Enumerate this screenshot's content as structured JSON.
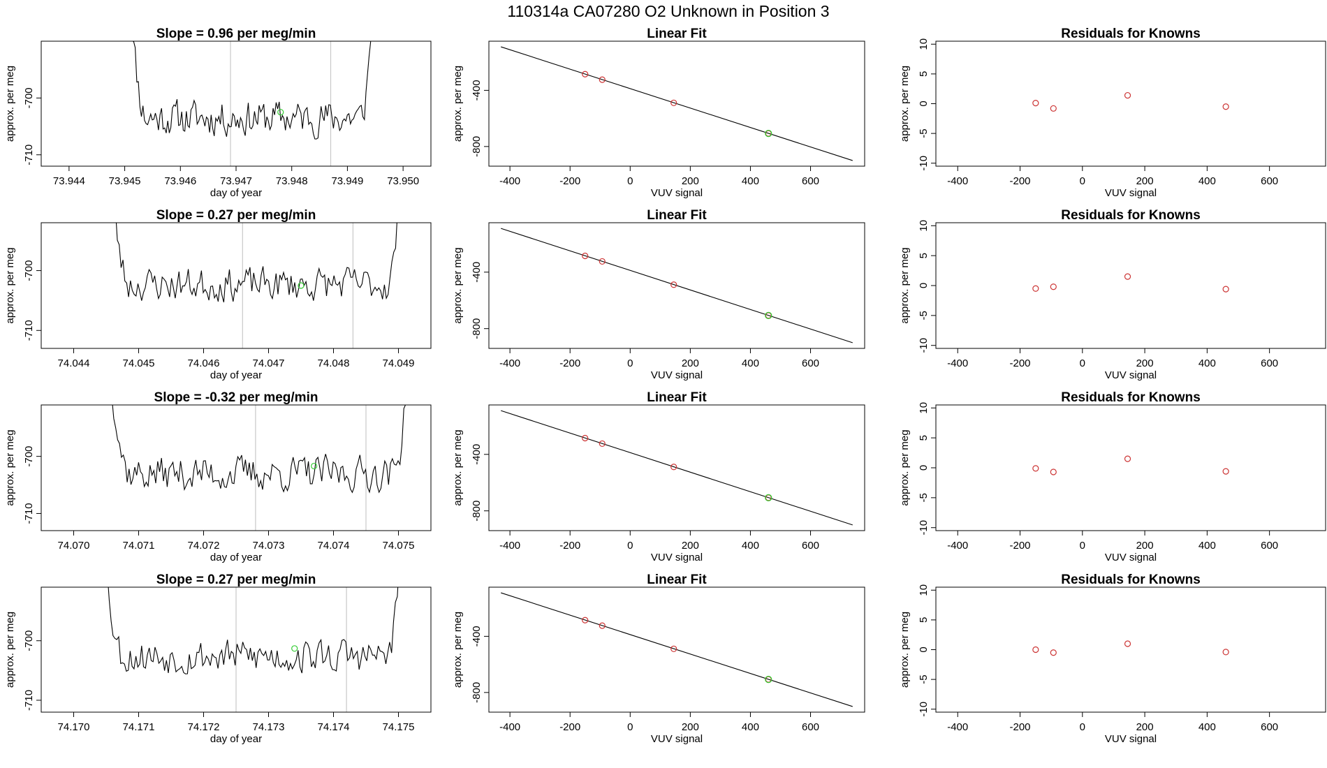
{
  "page_title": "110314a      CA07280    O2 Unknown in Position  3",
  "colors": {
    "known": "#cc3333",
    "unknown": "#33cc33",
    "line": "#000000",
    "vline": "#c8c8c8"
  },
  "chart_data": [
    {
      "type": "line",
      "panel": "time",
      "row": 0,
      "title": "Slope =  0.96  per meg/min",
      "xlabel": "day of year",
      "ylabel": "approx. per meg",
      "xlim": [
        73.9435,
        73.9505
      ],
      "ylim": [
        -712,
        -690
      ],
      "xticks": [
        73.944,
        73.945,
        73.946,
        73.947,
        73.948,
        73.949,
        73.95
      ],
      "xtick_labels": [
        "73.944",
        "73.945",
        "73.946",
        "73.947",
        "73.948",
        "73.949",
        "73.950"
      ],
      "yticks": [
        -700,
        -710
      ],
      "ytick_labels": [
        "-700",
        "-710"
      ],
      "trace_range": [
        73.94505,
        73.9495
      ],
      "trace_baseline": -703.5,
      "trace_noise": 2.2,
      "seed": 11,
      "vlines": [
        73.9469,
        73.9487
      ],
      "unknown_point": {
        "x": 73.9478,
        "y": -702.5
      }
    },
    {
      "type": "line",
      "panel": "time",
      "row": 1,
      "title": "Slope =  0.27  per meg/min",
      "xlabel": "day of year",
      "ylabel": "approx. per meg",
      "xlim": [
        74.0435,
        74.0495
      ],
      "ylim": [
        -713,
        -692
      ],
      "xticks": [
        74.044,
        74.045,
        74.046,
        74.047,
        74.048,
        74.049
      ],
      "xtick_labels": [
        "74.044",
        "74.045",
        "74.046",
        "74.047",
        "74.048",
        "74.049"
      ],
      "yticks": [
        -700,
        -710
      ],
      "ytick_labels": [
        "-700",
        "-710"
      ],
      "trace_range": [
        74.0445,
        74.0491
      ],
      "trace_baseline": -702.3,
      "trace_noise": 2.0,
      "seed": 23,
      "vlines": [
        74.0466,
        74.0483
      ],
      "unknown_point": {
        "x": 74.0475,
        "y": -702.5
      }
    },
    {
      "type": "line",
      "panel": "time",
      "row": 2,
      "title": "Slope =  -0.32  per meg/min",
      "xlabel": "day of year",
      "ylabel": "approx. per meg",
      "xlim": [
        74.0695,
        74.0755
      ],
      "ylim": [
        -713,
        -691
      ],
      "xticks": [
        74.07,
        74.071,
        74.072,
        74.073,
        74.074,
        74.075
      ],
      "xtick_labels": [
        "74.070",
        "74.071",
        "74.072",
        "74.073",
        "74.074",
        "74.075"
      ],
      "yticks": [
        -700,
        -710
      ],
      "ytick_labels": [
        "-700",
        "-710"
      ],
      "trace_range": [
        74.0705,
        74.0752
      ],
      "trace_baseline": -703.0,
      "trace_noise": 2.2,
      "seed": 37,
      "vlines": [
        74.0728,
        74.0745
      ],
      "unknown_point": {
        "x": 74.0737,
        "y": -701.7
      }
    },
    {
      "type": "line",
      "panel": "time",
      "row": 3,
      "title": "Slope =  0.27  per meg/min",
      "xlabel": "day of year",
      "ylabel": "approx. per meg",
      "xlim": [
        74.1695,
        74.1755
      ],
      "ylim": [
        -712,
        -691
      ],
      "xticks": [
        74.17,
        74.171,
        74.172,
        74.173,
        74.174,
        74.175
      ],
      "xtick_labels": [
        "74.170",
        "74.171",
        "74.172",
        "74.173",
        "74.174",
        "74.175"
      ],
      "yticks": [
        -700,
        -710
      ],
      "ytick_labels": [
        "-700",
        "-710"
      ],
      "trace_range": [
        74.1704,
        74.1751
      ],
      "trace_baseline": -702.6,
      "trace_noise": 2.1,
      "seed": 53,
      "vlines": [
        74.1725,
        74.1742
      ],
      "unknown_point": {
        "x": 74.1734,
        "y": -701.3
      }
    },
    {
      "type": "scatter",
      "panel": "fit",
      "row": 0,
      "title": "Linear Fit",
      "xlabel": "VUV signal",
      "ylabel": "approx. per meg",
      "xlim": [
        -470,
        780
      ],
      "ylim": [
        -940,
        -50
      ],
      "xticks": [
        -400,
        -200,
        0,
        200,
        400,
        600
      ],
      "xtick_labels": [
        "-400",
        "-200",
        "0",
        "200",
        "400",
        "600"
      ],
      "yticks": [
        -400,
        -800
      ],
      "ytick_labels": [
        "-400",
        "-800"
      ],
      "fit_line": {
        "x": [
          -430,
          740
        ],
        "y": [
          -90,
          -900
        ]
      },
      "knowns": [
        {
          "x": -150,
          "y": -285
        },
        {
          "x": -93,
          "y": -324
        },
        {
          "x": 145,
          "y": -489
        },
        {
          "x": 460,
          "y": -707
        }
      ],
      "unknown": {
        "x": 460,
        "y": -707
      }
    },
    {
      "type": "scatter",
      "panel": "fit",
      "row": 1,
      "title": "Linear Fit",
      "xlabel": "VUV signal",
      "ylabel": "approx. per meg",
      "xlim": [
        -470,
        780
      ],
      "ylim": [
        -940,
        -50
      ],
      "xticks": [
        -400,
        -200,
        0,
        200,
        400,
        600
      ],
      "xtick_labels": [
        "-400",
        "-200",
        "0",
        "200",
        "400",
        "600"
      ],
      "yticks": [
        -400,
        -800
      ],
      "ytick_labels": [
        "-400",
        "-800"
      ],
      "fit_line": {
        "x": [
          -430,
          740
        ],
        "y": [
          -90,
          -900
        ]
      },
      "knowns": [
        {
          "x": -150,
          "y": -285
        },
        {
          "x": -93,
          "y": -324
        },
        {
          "x": 145,
          "y": -489
        },
        {
          "x": 460,
          "y": -707
        }
      ],
      "unknown": {
        "x": 460,
        "y": -707
      }
    },
    {
      "type": "scatter",
      "panel": "fit",
      "row": 2,
      "title": "Linear Fit",
      "xlabel": "VUV signal",
      "ylabel": "approx. per meg",
      "xlim": [
        -470,
        780
      ],
      "ylim": [
        -940,
        -50
      ],
      "xticks": [
        -400,
        -200,
        0,
        200,
        400,
        600
      ],
      "xtick_labels": [
        "-400",
        "-200",
        "0",
        "200",
        "400",
        "600"
      ],
      "yticks": [
        -400,
        -800
      ],
      "ytick_labels": [
        "-400",
        "-800"
      ],
      "fit_line": {
        "x": [
          -430,
          740
        ],
        "y": [
          -90,
          -900
        ]
      },
      "knowns": [
        {
          "x": -150,
          "y": -285
        },
        {
          "x": -93,
          "y": -324
        },
        {
          "x": 145,
          "y": -489
        },
        {
          "x": 460,
          "y": -707
        }
      ],
      "unknown": {
        "x": 460,
        "y": -707
      }
    },
    {
      "type": "scatter",
      "panel": "fit",
      "row": 3,
      "title": "Linear Fit",
      "xlabel": "VUV signal",
      "ylabel": "approx. per meg",
      "xlim": [
        -470,
        780
      ],
      "ylim": [
        -940,
        -50
      ],
      "xticks": [
        -400,
        -200,
        0,
        200,
        400,
        600
      ],
      "xtick_labels": [
        "-400",
        "-200",
        "0",
        "200",
        "400",
        "600"
      ],
      "yticks": [
        -400,
        -800
      ],
      "ytick_labels": [
        "-400",
        "-800"
      ],
      "fit_line": {
        "x": [
          -430,
          740
        ],
        "y": [
          -90,
          -900
        ]
      },
      "knowns": [
        {
          "x": -150,
          "y": -285
        },
        {
          "x": -93,
          "y": -324
        },
        {
          "x": 145,
          "y": -489
        },
        {
          "x": 460,
          "y": -707
        }
      ],
      "unknown": {
        "x": 460,
        "y": -707
      }
    },
    {
      "type": "scatter",
      "panel": "resid",
      "row": 0,
      "title": "Residuals for Knowns",
      "xlabel": "VUV signal",
      "ylabel": "approx. per meg",
      "xlim": [
        -470,
        780
      ],
      "ylim": [
        -10.5,
        10.5
      ],
      "xticks": [
        -400,
        -200,
        0,
        200,
        400,
        600
      ],
      "xtick_labels": [
        "-400",
        "-200",
        "0",
        "200",
        "400",
        "600"
      ],
      "yticks": [
        10,
        5,
        0,
        -5,
        -10
      ],
      "ytick_labels": [
        "10",
        "5",
        "0",
        "-5",
        "-10"
      ],
      "points": [
        {
          "x": -150,
          "y": 0.1
        },
        {
          "x": -93,
          "y": -0.8
        },
        {
          "x": 145,
          "y": 1.4
        },
        {
          "x": 460,
          "y": -0.5
        }
      ]
    },
    {
      "type": "scatter",
      "panel": "resid",
      "row": 1,
      "title": "Residuals for Knowns",
      "xlabel": "VUV signal",
      "ylabel": "approx. per meg",
      "xlim": [
        -470,
        780
      ],
      "ylim": [
        -10.5,
        10.5
      ],
      "xticks": [
        -400,
        -200,
        0,
        200,
        400,
        600
      ],
      "xtick_labels": [
        "-400",
        "-200",
        "0",
        "200",
        "400",
        "600"
      ],
      "yticks": [
        10,
        5,
        0,
        -5,
        -10
      ],
      "ytick_labels": [
        "10",
        "5",
        "0",
        "-5",
        "-10"
      ],
      "points": [
        {
          "x": -150,
          "y": -0.5
        },
        {
          "x": -93,
          "y": -0.2
        },
        {
          "x": 145,
          "y": 1.5
        },
        {
          "x": 460,
          "y": -0.6
        }
      ]
    },
    {
      "type": "scatter",
      "panel": "resid",
      "row": 2,
      "title": "Residuals for Knowns",
      "xlabel": "VUV signal",
      "ylabel": "approx. per meg",
      "xlim": [
        -470,
        780
      ],
      "ylim": [
        -10.5,
        10.5
      ],
      "xticks": [
        -400,
        -200,
        0,
        200,
        400,
        600
      ],
      "xtick_labels": [
        "-400",
        "-200",
        "0",
        "200",
        "400",
        "600"
      ],
      "yticks": [
        10,
        5,
        0,
        -5,
        -10
      ],
      "ytick_labels": [
        "10",
        "5",
        "0",
        "-5",
        "-10"
      ],
      "points": [
        {
          "x": -150,
          "y": -0.1
        },
        {
          "x": -93,
          "y": -0.7
        },
        {
          "x": 145,
          "y": 1.5
        },
        {
          "x": 460,
          "y": -0.6
        }
      ]
    },
    {
      "type": "scatter",
      "panel": "resid",
      "row": 3,
      "title": "Residuals for Knowns",
      "xlabel": "VUV signal",
      "ylabel": "approx. per meg",
      "xlim": [
        -470,
        780
      ],
      "ylim": [
        -10.5,
        10.5
      ],
      "xticks": [
        -400,
        -200,
        0,
        200,
        400,
        600
      ],
      "xtick_labels": [
        "-400",
        "-200",
        "0",
        "200",
        "400",
        "600"
      ],
      "yticks": [
        10,
        5,
        0,
        -5,
        -10
      ],
      "ytick_labels": [
        "10",
        "5",
        "0",
        "-5",
        "-10"
      ],
      "points": [
        {
          "x": -150,
          "y": 0.0
        },
        {
          "x": -93,
          "y": -0.5
        },
        {
          "x": 145,
          "y": 1.0
        },
        {
          "x": 460,
          "y": -0.4
        }
      ]
    }
  ]
}
